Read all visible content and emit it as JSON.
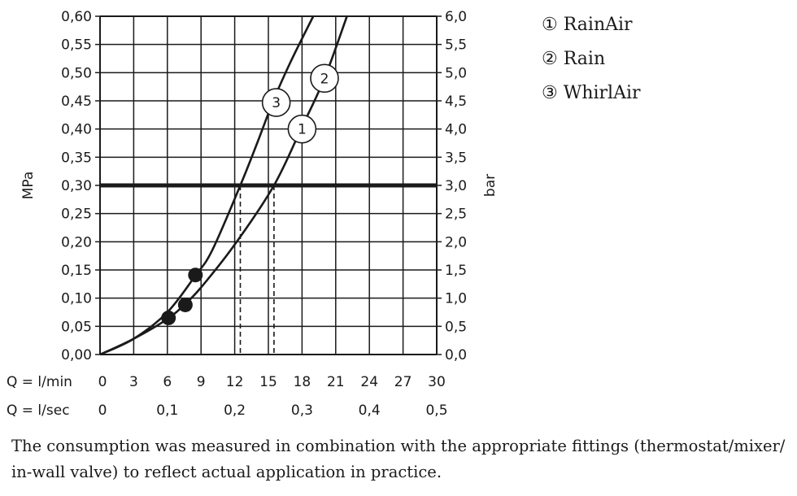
{
  "chart_data": {
    "type": "line",
    "ylabel_left": "MPa",
    "ylabel_right": "bar",
    "x_primary_label": "Q = l/min",
    "x_secondary_label": "Q = l/sec",
    "x_primary_ticks": [
      "0",
      "3",
      "6",
      "9",
      "12",
      "15",
      "18",
      "21",
      "24",
      "27",
      "30"
    ],
    "x_secondary_ticks": [
      {
        "value": 0,
        "label": "0"
      },
      {
        "value": 6,
        "label": "0,1"
      },
      {
        "value": 12,
        "label": "0,2"
      },
      {
        "value": 18,
        "label": "0,3"
      },
      {
        "value": 24,
        "label": "0,4"
      },
      {
        "value": 30,
        "label": "0,5"
      }
    ],
    "y_left_ticks": [
      "0,00",
      "0,05",
      "0,10",
      "0,15",
      "0,20",
      "0,25",
      "0,30",
      "0,35",
      "0,40",
      "0,45",
      "0,50",
      "0,55",
      "0,60"
    ],
    "y_right_ticks": [
      {
        "value": 0.0,
        "label": "0,0"
      },
      {
        "value": 0.05,
        "label": "0,5"
      },
      {
        "value": 0.1,
        "label": "1,0"
      },
      {
        "value": 0.15,
        "label": "1,5"
      },
      {
        "value": 0.2,
        "label": "2,0"
      },
      {
        "value": 0.25,
        "label": "2,5"
      },
      {
        "value": 0.3,
        "label": "3,0"
      },
      {
        "value": 0.35,
        "label": "3,5"
      },
      {
        "value": 0.4,
        "label": "4,0"
      },
      {
        "value": 0.45,
        "label": "4,5"
      },
      {
        "value": 0.5,
        "label": "5,0"
      },
      {
        "value": 0.55,
        "label": "5,5"
      },
      {
        "value": 0.6,
        "label": "6,0"
      }
    ],
    "xlim": [
      0,
      30
    ],
    "ylim": [
      0,
      0.6
    ],
    "grid": true,
    "reference_line_y": 0.3,
    "drop_lines": [
      {
        "x": 12.5,
        "y": 0.3
      },
      {
        "x": 15.5,
        "y": 0.3
      }
    ],
    "series": [
      {
        "tag": "1",
        "x": [
          0,
          3,
          6,
          7.5,
          9,
          12,
          15.5,
          18,
          20,
          22
        ],
        "y": [
          0,
          0.028,
          0.063,
          0.088,
          0.119,
          0.195,
          0.3,
          0.404,
          0.49,
          0.6
        ]
      },
      {
        "tag": "2",
        "x": [
          0,
          3,
          6,
          7.5,
          9,
          12,
          15.5,
          18,
          20,
          22
        ],
        "y": [
          0,
          0.028,
          0.063,
          0.088,
          0.119,
          0.195,
          0.3,
          0.404,
          0.49,
          0.6
        ]
      },
      {
        "tag": "3",
        "x": [
          0,
          3,
          6,
          8.5,
          10,
          12.5,
          14,
          15.5,
          17,
          19
        ],
        "y": [
          0,
          0.028,
          0.075,
          0.14,
          0.185,
          0.3,
          0.375,
          0.453,
          0.52,
          0.6
        ]
      }
    ],
    "markers": [
      {
        "x": 6.1,
        "y": 0.065
      },
      {
        "x": 7.6,
        "y": 0.088
      },
      {
        "x": 8.5,
        "y": 0.141
      }
    ],
    "curve_tags": [
      {
        "label": "1",
        "x": 18.0,
        "y": 0.4
      },
      {
        "label": "2",
        "x": 20.0,
        "y": 0.49
      },
      {
        "label": "3",
        "x": 15.7,
        "y": 0.447
      }
    ],
    "legend": [
      {
        "label": "① RainAir"
      },
      {
        "label": "② Rain"
      },
      {
        "label": "③ WhirlAir"
      }
    ],
    "legend_position": "top-right"
  },
  "footnote": "The consumption was measured in combination with the appropriate fittings (thermostat/mixer/ in-wall valve) to reflect actual application in practice."
}
